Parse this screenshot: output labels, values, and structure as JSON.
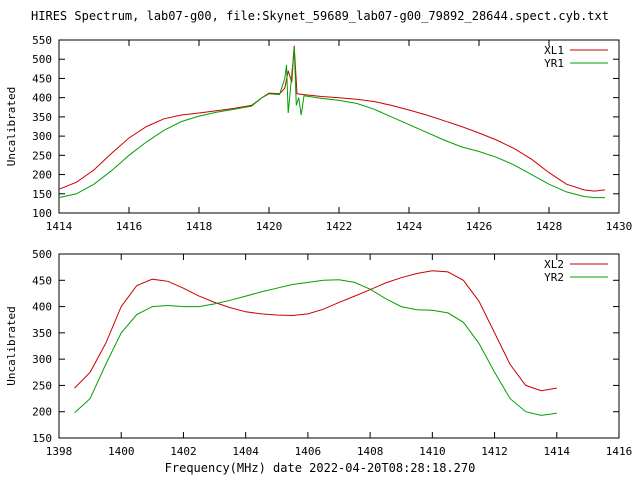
{
  "title": "HIRES Spectrum, lab07-g00, file:Skynet_59689_lab07-g00_79892_28644.spect.cyb.txt",
  "xlabel": "Frequency(MHz) date 2022-04-20T08:28:18.270",
  "chart_data": [
    {
      "type": "line",
      "ylabel": "Uncalibrated",
      "xlim": [
        1414,
        1430
      ],
      "ylim": [
        100,
        550
      ],
      "xticks": [
        1414,
        1416,
        1418,
        1420,
        1422,
        1424,
        1426,
        1428,
        1430
      ],
      "yticks": [
        100,
        150,
        200,
        250,
        300,
        350,
        400,
        450,
        500,
        550
      ],
      "grid": false,
      "legend": "top-right",
      "series": [
        {
          "name": "XL1",
          "color": "#cc0000",
          "x": [
            1414.0,
            1414.5,
            1415.0,
            1415.5,
            1416.0,
            1416.5,
            1417.0,
            1417.5,
            1418.0,
            1418.5,
            1419.0,
            1419.5,
            1419.8,
            1420.0,
            1420.3,
            1420.45,
            1420.55,
            1420.65,
            1420.72,
            1420.8,
            1421.0,
            1421.5,
            1422.0,
            1422.5,
            1423.0,
            1423.5,
            1424.0,
            1424.5,
            1425.0,
            1425.5,
            1426.0,
            1426.5,
            1427.0,
            1427.5,
            1428.0,
            1428.5,
            1429.0,
            1429.3,
            1429.6
          ],
          "y": [
            162,
            180,
            212,
            255,
            295,
            325,
            345,
            355,
            360,
            366,
            372,
            380,
            400,
            412,
            410,
            425,
            470,
            440,
            535,
            410,
            408,
            403,
            400,
            396,
            390,
            380,
            368,
            355,
            340,
            325,
            308,
            290,
            268,
            240,
            205,
            175,
            160,
            157,
            160
          ]
        },
        {
          "name": "YR1",
          "color": "#00a000",
          "x": [
            1414.0,
            1414.5,
            1415.0,
            1415.5,
            1416.0,
            1416.5,
            1417.0,
            1417.5,
            1418.0,
            1418.5,
            1419.0,
            1419.5,
            1419.8,
            1420.0,
            1420.3,
            1420.45,
            1420.5,
            1420.55,
            1420.62,
            1420.72,
            1420.78,
            1420.85,
            1420.92,
            1421.0,
            1421.5,
            1422.0,
            1422.5,
            1423.0,
            1423.5,
            1424.0,
            1424.5,
            1425.0,
            1425.5,
            1426.0,
            1426.5,
            1427.0,
            1427.5,
            1428.0,
            1428.5,
            1429.0,
            1429.3,
            1429.6
          ],
          "y": [
            140,
            150,
            175,
            210,
            250,
            285,
            315,
            338,
            352,
            362,
            370,
            378,
            400,
            410,
            408,
            450,
            485,
            360,
            430,
            530,
            380,
            400,
            355,
            405,
            398,
            393,
            385,
            370,
            350,
            330,
            310,
            290,
            272,
            260,
            245,
            225,
            200,
            175,
            155,
            143,
            140,
            140
          ]
        }
      ]
    },
    {
      "type": "line",
      "ylabel": "Uncalibrated",
      "xlim": [
        1398,
        1416
      ],
      "ylim": [
        150,
        500
      ],
      "xticks": [
        1398,
        1400,
        1402,
        1404,
        1406,
        1408,
        1410,
        1412,
        1414,
        1416
      ],
      "yticks": [
        150,
        200,
        250,
        300,
        350,
        400,
        450,
        500
      ],
      "grid": false,
      "legend": "top-right",
      "series": [
        {
          "name": "XL2",
          "color": "#cc0000",
          "x": [
            1398.5,
            1399.0,
            1399.5,
            1400.0,
            1400.5,
            1401.0,
            1401.5,
            1402.0,
            1402.5,
            1403.0,
            1403.5,
            1404.0,
            1404.5,
            1405.0,
            1405.5,
            1406.0,
            1406.5,
            1407.0,
            1407.5,
            1408.0,
            1408.5,
            1409.0,
            1409.5,
            1410.0,
            1410.5,
            1411.0,
            1411.5,
            1412.0,
            1412.5,
            1413.0,
            1413.5,
            1414.0
          ],
          "y": [
            245,
            275,
            330,
            400,
            440,
            452,
            448,
            435,
            420,
            408,
            398,
            390,
            386,
            384,
            383,
            386,
            395,
            408,
            420,
            432,
            445,
            455,
            463,
            468,
            466,
            450,
            410,
            350,
            290,
            250,
            240,
            245
          ]
        },
        {
          "name": "YR2",
          "color": "#00a000",
          "x": [
            1398.5,
            1399.0,
            1399.5,
            1400.0,
            1400.5,
            1401.0,
            1401.5,
            1402.0,
            1402.5,
            1403.0,
            1403.5,
            1404.0,
            1404.5,
            1405.0,
            1405.5,
            1406.0,
            1406.5,
            1407.0,
            1407.5,
            1408.0,
            1408.5,
            1409.0,
            1409.5,
            1410.0,
            1410.5,
            1411.0,
            1411.5,
            1412.0,
            1412.5,
            1413.0,
            1413.5,
            1414.0
          ],
          "y": [
            198,
            225,
            290,
            350,
            385,
            400,
            402,
            400,
            400,
            405,
            412,
            420,
            428,
            435,
            442,
            446,
            450,
            451,
            446,
            433,
            415,
            400,
            394,
            393,
            388,
            370,
            330,
            275,
            225,
            200,
            193,
            197
          ]
        }
      ]
    }
  ]
}
